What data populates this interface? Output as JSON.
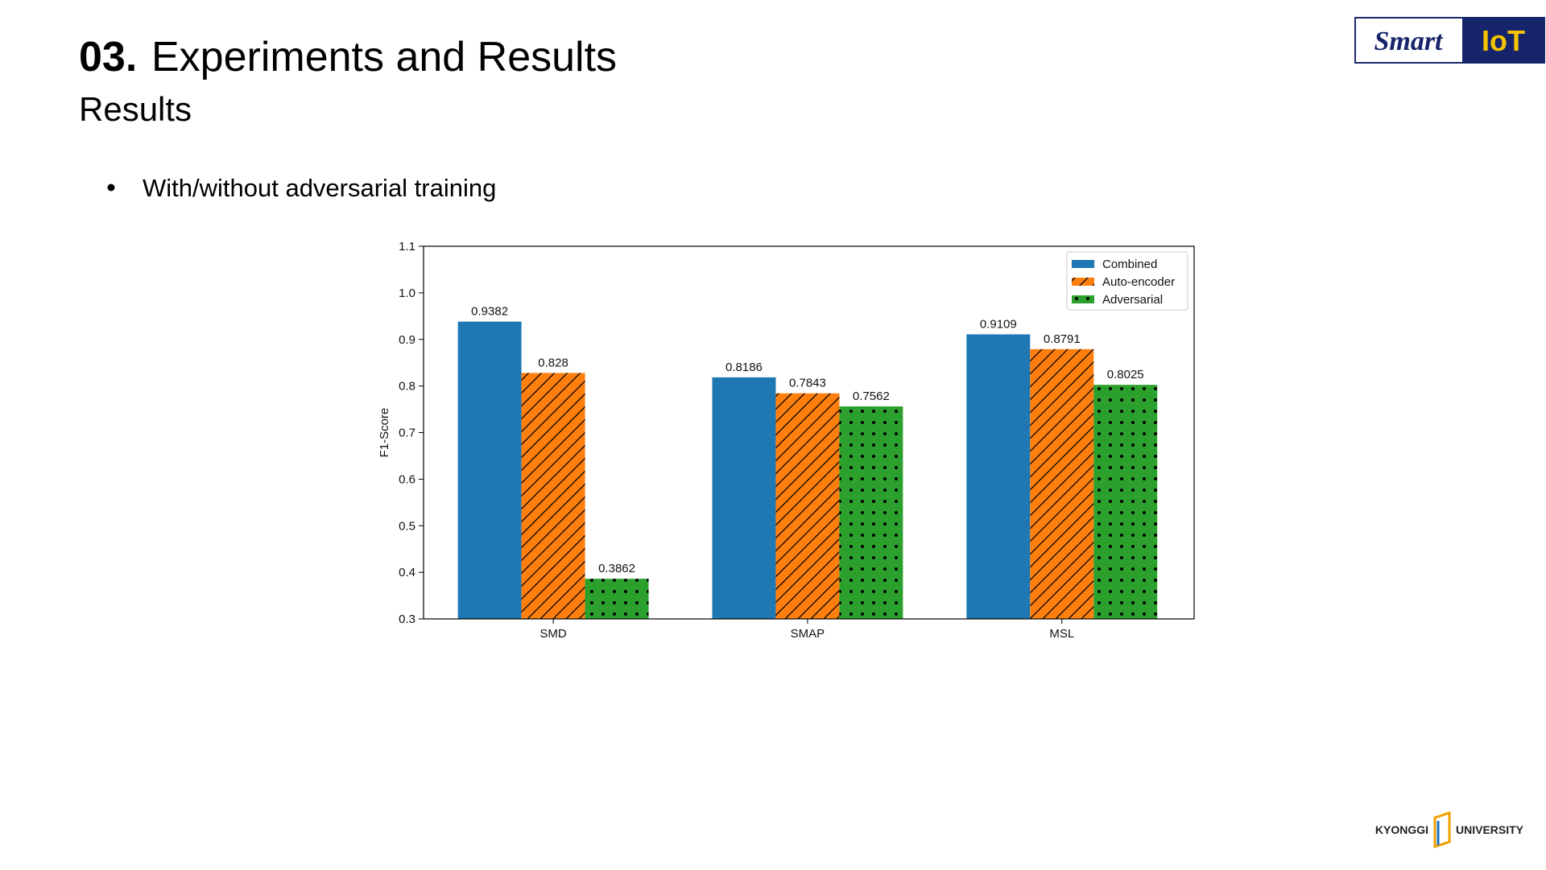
{
  "header": {
    "number": "03.",
    "title": "Experiments and Results",
    "subtitle": "Results"
  },
  "bullet": "With/without adversarial training",
  "logo": {
    "left": "Smart",
    "right": "IoT"
  },
  "footer": {
    "left": "KYONGGI",
    "right": "UNIVERSITY"
  },
  "chart_data": {
    "type": "bar",
    "ylabel": "F1-Score",
    "categories": [
      "SMD",
      "SMAP",
      "MSL"
    ],
    "series": [
      {
        "name": "Combined",
        "color": "#1f77b4",
        "hatch": "none",
        "values": [
          0.9382,
          0.8186,
          0.9109
        ]
      },
      {
        "name": "Auto-encoder",
        "color": "#ff7f0e",
        "hatch": "/",
        "values": [
          0.828,
          0.7843,
          0.8791
        ]
      },
      {
        "name": "Adversarial",
        "color": "#2ca02c",
        "hatch": ".",
        "values": [
          0.3862,
          0.7562,
          0.8025
        ]
      }
    ],
    "ylim": [
      0.3,
      1.1
    ],
    "yticks": [
      0.3,
      0.4,
      0.5,
      0.6,
      0.7,
      0.8,
      0.9,
      {
        "value": 1,
        "label": "1.0"
      },
      1.1
    ],
    "grid": false,
    "legend": "upper-right"
  }
}
